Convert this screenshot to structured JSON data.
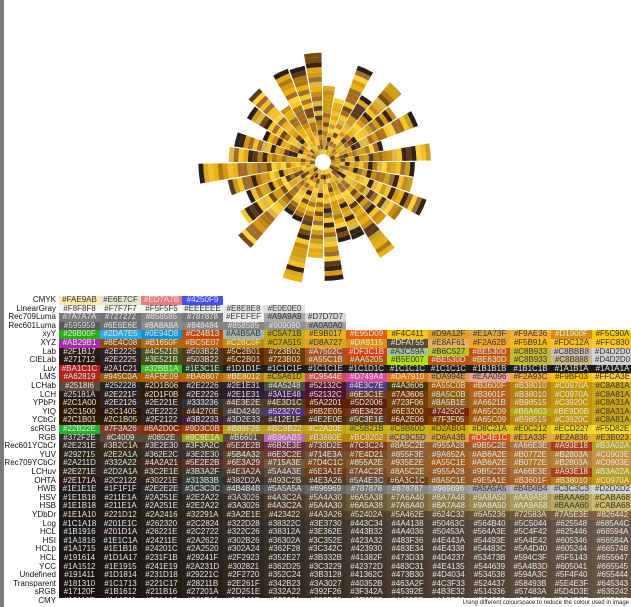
{
  "row_labels": [
    "CMYK",
    "LinearGray",
    "Rec709Luma",
    "Rec601Luma",
    "xyY",
    "XYZ",
    "Lab",
    "CIELab",
    "Luv",
    "LMS",
    "LCHab",
    "LCH",
    "YPbPr",
    "YIQ",
    "YCbCr",
    "scRGB",
    "RGB",
    "Rec601YCbCr",
    "YUV",
    "Rec709YCbCr",
    "LCHuv",
    "OHTA",
    "HWB",
    "HSV",
    "HSB",
    "YDbDr",
    "Log",
    "HCL",
    "HSI",
    "HCLp",
    "HCL",
    "YCC",
    "Undefined",
    "Transparent",
    "sRGB",
    "CMY"
  ],
  "header_rows": [
    {
      "label": "CMYK",
      "cells": [
        "#FAE9AB",
        "#E6E7CF",
        "#ED7A7B",
        "#4250F9"
      ]
    },
    {
      "label": "LinearGray",
      "cells": [
        "#F8F8F8",
        "#F7F7F7",
        "#F5F5F5",
        "#EEEEEE",
        "#E8E8E8",
        "#E0E0E0"
      ]
    },
    {
      "label": "Rec709Luma",
      "cells": [
        "#7A7A7A",
        "#727272",
        "#858585",
        "#787878",
        "#EFEFEF",
        "#A9A9A9",
        "#D7D7D7"
      ]
    },
    {
      "label": "Rec601Luma",
      "cells": [
        "#595959",
        "#6E6E6E",
        "#8A8A8A",
        "#848484",
        "#858585",
        "#909090",
        "#A0A0A0"
      ]
    }
  ],
  "color_rows": [
    {
      "label": "xyY",
      "cells": [
        "#29B00F",
        "#2DA7E5",
        "#0E94D8",
        "#C24B13",
        "#A4B5AB",
        "#C5A71B",
        "#E9B017",
        "#E95D09",
        "#F4C411",
        "#D9A12F",
        "#E1A73F",
        "#F9AE36",
        "#D1900F",
        "#F5C90A"
      ]
    },
    {
      "label": "XYZ",
      "cells": [
        "#AB29B1",
        "#8E4C08",
        "#B1650F",
        "#BC5E07",
        "#C28C0F",
        "#C7A515",
        "#D8A727",
        "#DA9115",
        "#DFAT55",
        "#E8AF61",
        "#F2A62B",
        "#F5B91A",
        "#FDC12A",
        "#FFC830"
      ]
    },
    {
      "label": "Lab",
      "cells": [
        "#2F1B17",
        "#2E2225",
        "#4C521B",
        "#503B22",
        "#5C2B01",
        "#723B02",
        "#A7502C",
        "#DF3C1B",
        "#A3C59A",
        "#B6C527",
        "#BE530D",
        "#C8B933",
        "#C8BBB8",
        "#D4D2D0"
      ]
    },
    {
      "label": "CIELab",
      "cells": [
        "#271712",
        "#2E2225",
        "#3E521B",
        "#503B22",
        "#5C2B01",
        "#723B02",
        "#A55C1B",
        "#AA5205",
        "#B5E007",
        "#BE530D",
        "#BE630D",
        "#C8B933",
        "#C8B888",
        "#D4D2D0"
      ]
    },
    {
      "label": "Luv",
      "cells": [
        "#BA1C1C",
        "#2A1C21",
        "#32BB1A",
        "#1E3C1E",
        "#1D1D1F",
        "#1C1C1F",
        "#1C1C1E",
        "#1C1D1C",
        "#1C1C1C",
        "#1C1C1C",
        "#1B1B1B",
        "#1B1C1B",
        "#1A1B1A",
        "#1A1A1A"
      ]
    },
    {
      "label": "LMS",
      "cells": [
        "#A62819",
        "#945C0A",
        "#AF5E09",
        "#BA6807",
        "#BE8012",
        "#C5A61D",
        "#C9544E",
        "#D749A4",
        "#DA7910",
        "#DA994E",
        "#EAA096",
        "#F2A93C",
        "#F9BF03",
        "#FFCA3E"
      ]
    },
    {
      "label": "LCHab",
      "cells": [
        "#2518I6",
        "#252228",
        "#2D1B06",
        "#2E2226",
        "#2E1E31",
        "#4A5248",
        "#52132C",
        "#4E3C7E",
        "#4A3606",
        "#A55C0B",
        "#B3600F",
        "#B38010",
        "#C0970A",
        "#C8A81A"
      ]
    },
    {
      "label": "LCH",
      "cells": [
        "#25181A",
        "#2E221F",
        "#2D1F0B",
        "#2E2226",
        "#2E1E31",
        "#3A1E48",
        "#52132C",
        "#6E3C1E",
        "#7A3606",
        "#8A5C0B",
        "#B3601F",
        "#B38010",
        "#C0970A",
        "#C8A81A"
      ]
    },
    {
      "label": "YPbPr",
      "cells": [
        "#2C1A00",
        "#2E2126",
        "#2E221E",
        "#333236",
        "#4E3E2E",
        "#4E3D1C",
        "#5A2201",
        "#5D2006",
        "#723F06",
        "#8A5B1E",
        "#A6621B",
        "#B98515",
        "#C3920C",
        "#C8A31A"
      ]
    },
    {
      "label": "YIQ",
      "cells": [
        "#2C1500",
        "#2C1405",
        "#2E2222",
        "#44270E",
        "#4D4240",
        "#52327C",
        "#6B2E05",
        "#6E3422",
        "#6E3200",
        "#74250C",
        "#A65C09",
        "#B6A603",
        "#BE9D0B",
        "#C8A31A"
      ]
    },
    {
      "label": "YCbCr",
      "cells": [
        "#2C1B01",
        "#2C1B05",
        "#2F2122",
        "#3B2233",
        "#3D2E33",
        "#412E1F",
        "#4E2E0E",
        "#5C3E1E",
        "#6A2E06",
        "#7F3F05",
        "#A65C09",
        "#B98515",
        "#C3920C",
        "#C8A81A"
      ]
    },
    {
      "label": "scRGB",
      "cells": [
        "#22B22E",
        "#7F3A26",
        "#8A2D0C",
        "#9D3C0B",
        "#B89F26",
        "#BC9B22",
        "#C2A20E",
        "#C5B21B",
        "#C9B60D",
        "#D2AB04",
        "#D8C21A",
        "#E0C212",
        "#ECD227",
        "#F5D82E"
      ]
    },
    {
      "label": "RGB",
      "cells": [
        "#372F2E",
        "#C4009",
        "#0852E",
        "#9C9E1A",
        "#B6601",
        "#B96AB5",
        "#B3880E",
        "#BC8202",
        "#CC9C5D",
        "#D6A43B",
        "#DC4E1C",
        "#E1A33F",
        "#E2A836",
        "#E3B023"
      ]
    },
    {
      "label": "Rec601YCbCr",
      "cells": [
        "#2E231E",
        "#3B2C1A",
        "#3E2E30",
        "#3F3A2C",
        "#5E2E2B",
        "#6B2E3E",
        "#733D2E",
        "#7C3C24",
        "#8A5C2E",
        "#955A28",
        "#9B5C2E",
        "#A66E3E",
        "#A93E18",
        "#B3A02A"
      ]
    },
    {
      "label": "YUV",
      "cells": [
        "#292715",
        "#2E2A1A",
        "#362E2C",
        "#3E2E30",
        "#5B4A32",
        "#6E3C2E",
        "#714E3A",
        "#7E4D21",
        "#855F3E",
        "#9A652A",
        "#AB6A2E",
        "#B0772E",
        "#B2803A",
        "#C0903E"
      ]
    },
    {
      "label": "Rec709YCbCr",
      "cells": [
        "#2A211D",
        "#332A22",
        "#4A2A21",
        "#5E2E2B",
        "#6E3A29",
        "#715A3E",
        "#7D4C1C",
        "#855A2E",
        "#935E2E",
        "#A55C1E",
        "#AB6A2E",
        "#B0772E",
        "#B2803A",
        "#C0903E"
      ]
    },
    {
      "label": "LCHuv",
      "cells": [
        "#2E271E",
        "#2D2A1A",
        "#3C2E1E",
        "#3B3A2F",
        "#4E3A2A",
        "#5A4A3E",
        "#6E3A1E",
        "#7A4C2E",
        "#8A5C2E",
        "#955A28",
        "#9B5C2E",
        "#A66E3E",
        "#A93E18",
        "#B3A02A"
      ]
    },
    {
      "label": "OHTA",
      "cells": [
        "#2E171A",
        "#2C2122",
        "#30221E",
        "#313B3B",
        "#382D2A",
        "#493C2B",
        "#4E3A26",
        "#5A4E3C",
        "#6A3C1C",
        "#8A5C1E",
        "#9E5A1E",
        "#B3601F",
        "#B38010",
        "#C0970A"
      ]
    },
    {
      "label": "HWB",
      "cells": [
        "#1E1E1E",
        "#1F1F1F",
        "#2E2E2E",
        "#3C3C3C",
        "#4B4B4B",
        "#5A5A5A",
        "#696969",
        "#787878",
        "#878787",
        "#969696",
        "#A5A5A5",
        "#B4B4B4",
        "#C3C3C3",
        "#D2D2D2"
      ]
    },
    {
      "label": "HSV",
      "cells": [
        "#1E1B18",
        "#211E1A",
        "#2A251E",
        "#2E2A22",
        "#3A3026",
        "#4A3C2A",
        "#5A4A30",
        "#6A5A38",
        "#7A6A40",
        "#8A7A48",
        "#9A8A50",
        "#AA9A58",
        "#BAAA60",
        "#CABA68"
      ]
    },
    {
      "label": "HSB",
      "cells": [
        "#1E1B18",
        "#211E1A",
        "#2A251E",
        "#2E2A22",
        "#3A3026",
        "#4A3C2A",
        "#5A4A30",
        "#6A5A38",
        "#7A6A40",
        "#8A7A48",
        "#9A8A50",
        "#AA9A58",
        "#BAAA60",
        "#CABA68"
      ]
    },
    {
      "label": "YDbDr",
      "cells": [
        "#1E1A10",
        "#221D12",
        "#2A2416",
        "#32291A",
        "#3A2E1E",
        "#423422",
        "#4A3A26",
        "#52402A",
        "#5A462E",
        "#624C32",
        "#6A5236",
        "#72583A",
        "#7A5E3E",
        "#826442"
      ]
    },
    {
      "label": "Log",
      "cells": [
        "#1C1A18",
        "#201E1C",
        "#262320",
        "#2C2824",
        "#322D28",
        "#38322C",
        "#3E3730",
        "#443C34",
        "#4A4138",
        "#50463C",
        "#564B40",
        "#5C5044",
        "#625548",
        "#685A4C"
      ]
    },
    {
      "label": "HCL",
      "cells": [
        "#1B1916",
        "#201D1A",
        "#26221E",
        "#2C2722",
        "#322C26",
        "#38312A",
        "#3E362E",
        "#443B32",
        "#4A4036",
        "#50453A",
        "#564A3E",
        "#5C4F42",
        "#625446",
        "#68594A"
      ]
    },
    {
      "label": "HSI",
      "cells": [
        "#1A1816",
        "#1E1C1A",
        "#24211E",
        "#2A2622",
        "#302B26",
        "#36302A",
        "#3C352E",
        "#423A32",
        "#483F36",
        "#4E443A",
        "#54493E",
        "#5A4E42",
        "#605346",
        "#66584A"
      ]
    },
    {
      "label": "HCLp",
      "cells": [
        "#1A1715",
        "#1E1B18",
        "#24201C",
        "#2A2520",
        "#302A24",
        "#362F28",
        "#3C342C",
        "#423930",
        "#483E34",
        "#4E4338",
        "#54483C",
        "#5A4D40",
        "#605244",
        "#665748"
      ]
    },
    {
      "label": "HCL",
      "cells": [
        "#191614",
        "#1D1A17",
        "#231F1B",
        "#29241F",
        "#2F2923",
        "#352E27",
        "#3B332B",
        "#41382F",
        "#473D33",
        "#4D4237",
        "#53473B",
        "#594C3F",
        "#5F5143",
        "#655647"
      ]
    },
    {
      "label": "YCC",
      "cells": [
        "#1A1512",
        "#1E1915",
        "#241E19",
        "#2A231D",
        "#302821",
        "#362D25",
        "#3C3229",
        "#42372D",
        "#483C31",
        "#4E4135",
        "#544639",
        "#5A4B3D",
        "#605041",
        "#665545"
      ]
    },
    {
      "label": "Undefined",
      "cells": [
        "#191411",
        "#1D1814",
        "#231D18",
        "#29221C",
        "#2F2720",
        "#352C24",
        "#3B3128",
        "#41362C",
        "#473B30",
        "#4D4034",
        "#534538",
        "#594A3C",
        "#5F4F40",
        "#655444"
      ]
    },
    {
      "label": "Transparent",
      "cells": [
        "#181310",
        "#1C1713",
        "#221C17",
        "#28211B",
        "#2E261F",
        "#342B23",
        "#3A3027",
        "#40352B",
        "#463A2F",
        "#4C3F33",
        "#524437",
        "#58493B",
        "#5E4E3F",
        "#645343"
      ]
    },
    {
      "label": "sRGB",
      "cells": [
        "#17120F",
        "#1B1612",
        "#211B16",
        "#27201A",
        "#2D251E",
        "#332A22",
        "#392F26",
        "#3F342A",
        "#45392E",
        "#4B3E32",
        "#514336",
        "#57483A",
        "#5D4D3E",
        "#635242"
      ]
    },
    {
      "label": "CMY",
      "cells": [
        "#16110E",
        "#1A1511",
        "#201A15",
        "#261F19",
        "#2C241D",
        "#322921",
        "#382E25",
        "#3E3329",
        "#44382D",
        "#4A3D31",
        "#504235",
        "#564739",
        "#5C4C3D",
        "#625141"
      ]
    }
  ],
  "caption": "Using different colourspace to reduce the colour used in image"
}
